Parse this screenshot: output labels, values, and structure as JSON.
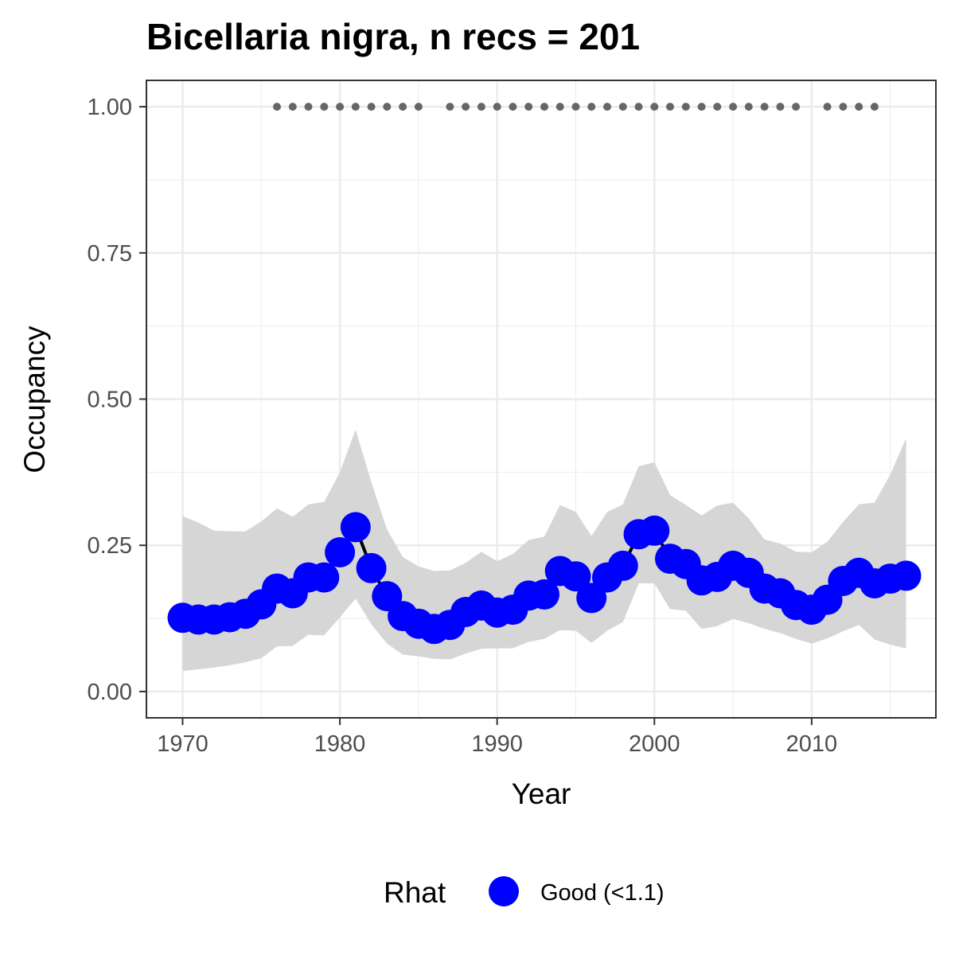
{
  "chart_data": {
    "type": "line",
    "title": "Bicellaria nigra, n recs = 201",
    "xlabel": "Year",
    "ylabel": "Occupancy",
    "xlim": [
      1967.7,
      2017.9
    ],
    "ylim": [
      -0.045,
      1.045
    ],
    "x_ticks": [
      1970,
      1980,
      1990,
      2000,
      2010
    ],
    "x_tick_labels": [
      "1970",
      "1980",
      "1990",
      "2000",
      "2010"
    ],
    "y_ticks": [
      0,
      0.25,
      0.5,
      0.75,
      1.0
    ],
    "y_tick_labels": [
      "0.00",
      "0.25",
      "0.50",
      "0.75",
      "1.00"
    ],
    "grid": true,
    "legend": {
      "title": "Rhat",
      "position": "bottom",
      "entries": [
        {
          "label": "Good (<1.1)",
          "color": "#0000ff"
        }
      ]
    },
    "colors": {
      "points": "#0000ff",
      "line": "#000000",
      "ribbon": "#d6d6d6",
      "record_dots": "#666666",
      "grid": "#ebebeb",
      "panel_border": "#333333"
    },
    "series": [
      {
        "x": [
          1970,
          1971,
          1972,
          1973,
          1974,
          1975,
          1976,
          1977,
          1978,
          1979,
          1980,
          1981,
          1982,
          1983,
          1984,
          1985,
          1986,
          1987,
          1988,
          1989,
          1990,
          1991,
          1992,
          1993,
          1994,
          1995,
          1996,
          1997,
          1998,
          1999,
          2000,
          2001,
          2002,
          2003,
          2004,
          2005,
          2006,
          2007,
          2008,
          2009,
          2010,
          2011,
          2012,
          2013,
          2014,
          2015,
          2016
        ],
        "y": [
          0.126,
          0.123,
          0.123,
          0.127,
          0.133,
          0.149,
          0.176,
          0.168,
          0.195,
          0.195,
          0.238,
          0.281,
          0.211,
          0.163,
          0.129,
          0.116,
          0.107,
          0.114,
          0.136,
          0.147,
          0.135,
          0.14,
          0.164,
          0.166,
          0.206,
          0.197,
          0.16,
          0.195,
          0.215,
          0.269,
          0.275,
          0.227,
          0.218,
          0.19,
          0.196,
          0.215,
          0.203,
          0.176,
          0.168,
          0.148,
          0.14,
          0.157,
          0.189,
          0.203,
          0.185,
          0.193,
          0.198
        ],
        "lower": [
          0.035,
          0.038,
          0.041,
          0.045,
          0.05,
          0.057,
          0.077,
          0.078,
          0.097,
          0.096,
          0.127,
          0.159,
          0.115,
          0.082,
          0.063,
          0.06,
          0.056,
          0.055,
          0.065,
          0.073,
          0.074,
          0.074,
          0.085,
          0.09,
          0.105,
          0.104,
          0.083,
          0.104,
          0.119,
          0.185,
          0.185,
          0.141,
          0.138,
          0.107,
          0.112,
          0.124,
          0.117,
          0.107,
          0.1,
          0.09,
          0.082,
          0.091,
          0.103,
          0.114,
          0.089,
          0.08,
          0.074
        ],
        "upper": [
          0.3,
          0.289,
          0.275,
          0.274,
          0.274,
          0.291,
          0.313,
          0.299,
          0.32,
          0.324,
          0.375,
          0.448,
          0.358,
          0.277,
          0.23,
          0.214,
          0.206,
          0.207,
          0.22,
          0.239,
          0.223,
          0.235,
          0.259,
          0.265,
          0.319,
          0.307,
          0.266,
          0.307,
          0.32,
          0.385,
          0.392,
          0.336,
          0.319,
          0.301,
          0.318,
          0.323,
          0.296,
          0.26,
          0.253,
          0.239,
          0.238,
          0.256,
          0.29,
          0.32,
          0.323,
          0.371,
          0.433
        ]
      }
    ],
    "record_years": [
      1976,
      1977,
      1978,
      1979,
      1980,
      1981,
      1982,
      1983,
      1984,
      1985,
      1987,
      1988,
      1989,
      1990,
      1991,
      1992,
      1993,
      1994,
      1995,
      1996,
      1997,
      1998,
      1999,
      2000,
      2001,
      2002,
      2003,
      2004,
      2005,
      2006,
      2007,
      2008,
      2009,
      2011,
      2012,
      2013,
      2014
    ],
    "record_y": 1.0
  }
}
